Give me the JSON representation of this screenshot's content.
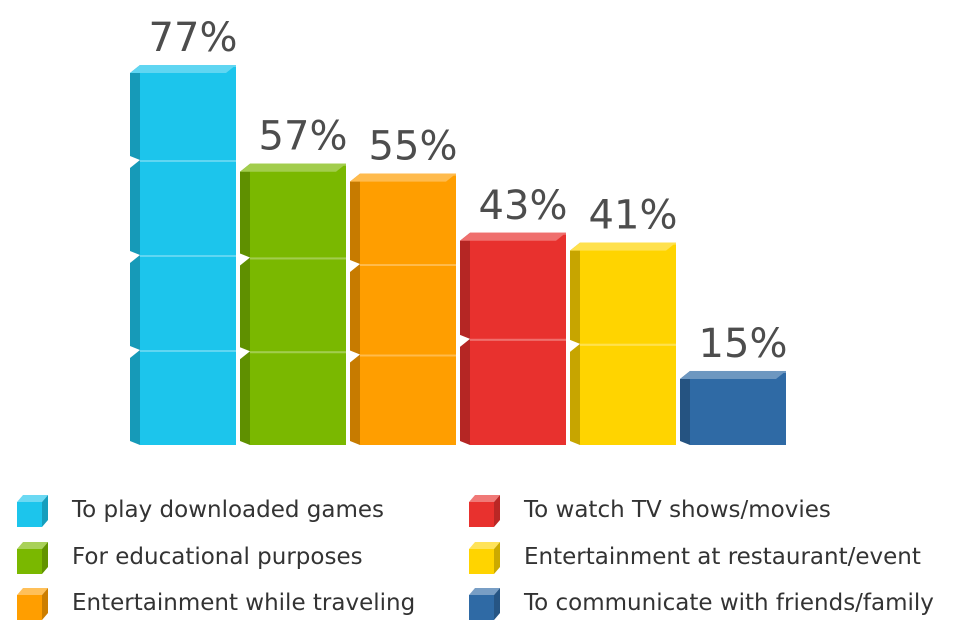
{
  "chart_data": {
    "type": "bar",
    "categories": [
      "To play downloaded games",
      "For educational purposes",
      "Entertainment while traveling",
      "To watch TV shows/movies",
      "Entertainment at restaurant/event",
      "To communicate with friends/family"
    ],
    "values": [
      77,
      57,
      55,
      43,
      41,
      15
    ],
    "data_labels": [
      "77%",
      "57%",
      "55%",
      "43%",
      "41%",
      "15%"
    ],
    "colors": [
      "#1cc5ec",
      "#7ab800",
      "#ff9e00",
      "#e8312e",
      "#ffd400",
      "#2f6aa5"
    ],
    "unit": "%",
    "ylim": [
      0,
      100
    ],
    "grid": false,
    "legend_position": "bottom"
  },
  "legend": {
    "items": [
      {
        "label": "To play downloaded games",
        "color": "#1cc5ec"
      },
      {
        "label": "For educational purposes",
        "color": "#7ab800"
      },
      {
        "label": "Entertainment while traveling",
        "color": "#ff9e00"
      },
      {
        "label": "To watch TV shows/movies",
        "color": "#e8312e"
      },
      {
        "label": "Entertainment at restaurant/event",
        "color": "#ffd400"
      },
      {
        "label": "To communicate with friends/family",
        "color": "#2f6aa5"
      }
    ]
  }
}
